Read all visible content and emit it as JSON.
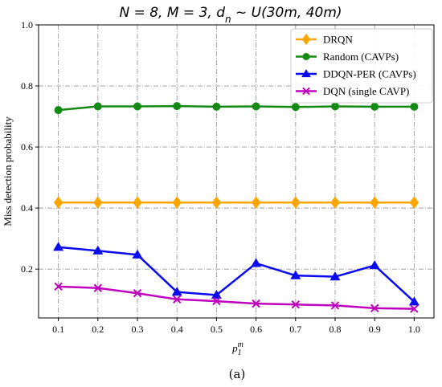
{
  "chart_data": {
    "type": "line",
    "title": "N = 8, M = 3, d_n ~ U(30m, 40m)",
    "xlabel": "p_1^m",
    "ylabel": "Miss detection probability",
    "caption": "(a)",
    "x": [
      0.1,
      0.2,
      0.3,
      0.4,
      0.5,
      0.6,
      0.7,
      0.8,
      0.9,
      1.0
    ],
    "x_tick_labels": [
      "0.1",
      "0.2",
      "0.3",
      "0.4",
      "0.5",
      "0.6",
      "0.7",
      "0.8",
      "0.9",
      "1.0"
    ],
    "y_ticks": [
      0.2,
      0.4,
      0.6,
      0.8,
      1.0
    ],
    "y_tick_labels": [
      "0.2",
      "0.4",
      "0.6",
      "0.8",
      "1.0"
    ],
    "xlim": [
      0.05,
      1.05
    ],
    "ylim": [
      0.04,
      1.0
    ],
    "grid": true,
    "grid_style": "dash-dot",
    "legend_position": "top-right",
    "series": [
      {
        "name": "DRQN",
        "color": "#FFA500",
        "marker": "diamond",
        "values": [
          0.418,
          0.418,
          0.418,
          0.418,
          0.418,
          0.418,
          0.418,
          0.418,
          0.418,
          0.418
        ]
      },
      {
        "name": "Random (CAVPs)",
        "color": "#138A13",
        "marker": "circle",
        "values": [
          0.721,
          0.733,
          0.733,
          0.734,
          0.732,
          0.733,
          0.731,
          0.733,
          0.732,
          0.732
        ]
      },
      {
        "name": "DDQN-PER (CAVPs)",
        "color": "#0A0AEE",
        "marker": "triangle",
        "values": [
          0.272,
          0.26,
          0.247,
          0.125,
          0.115,
          0.219,
          0.179,
          0.175,
          0.212,
          0.093
        ]
      },
      {
        "name": "DQN (single CAVP)",
        "color": "#BF00BF",
        "marker": "x",
        "values": [
          0.143,
          0.138,
          0.121,
          0.101,
          0.095,
          0.087,
          0.084,
          0.081,
          0.072,
          0.07
        ]
      }
    ]
  }
}
